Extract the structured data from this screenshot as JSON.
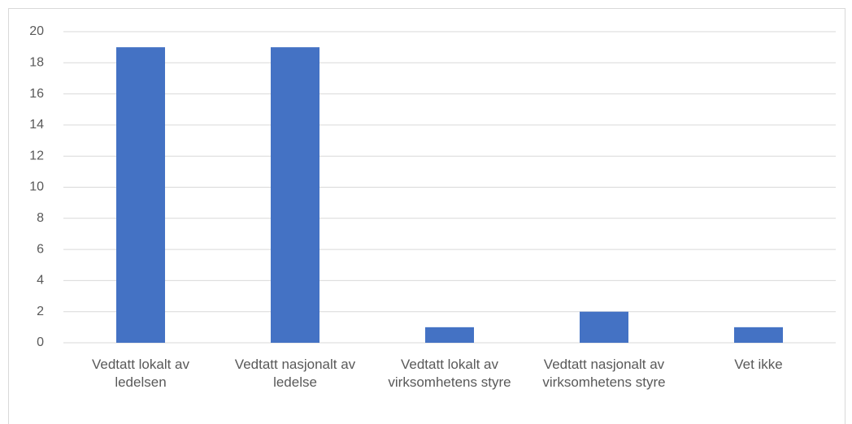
{
  "chart_data": {
    "type": "bar",
    "categories": [
      "Vedtatt lokalt av ledelsen",
      "Vedtatt nasjonalt av ledelse",
      "Vedtatt lokalt av virksomhetens styre",
      "Vedtatt nasjonalt av virksomhetens styre",
      "Vet ikke"
    ],
    "values": [
      19,
      19,
      1,
      2,
      1
    ],
    "color": "#4472c4",
    "ylim": [
      0,
      20
    ],
    "yticks": [
      0,
      2,
      4,
      6,
      8,
      10,
      12,
      14,
      16,
      18,
      20
    ],
    "grid": true
  }
}
